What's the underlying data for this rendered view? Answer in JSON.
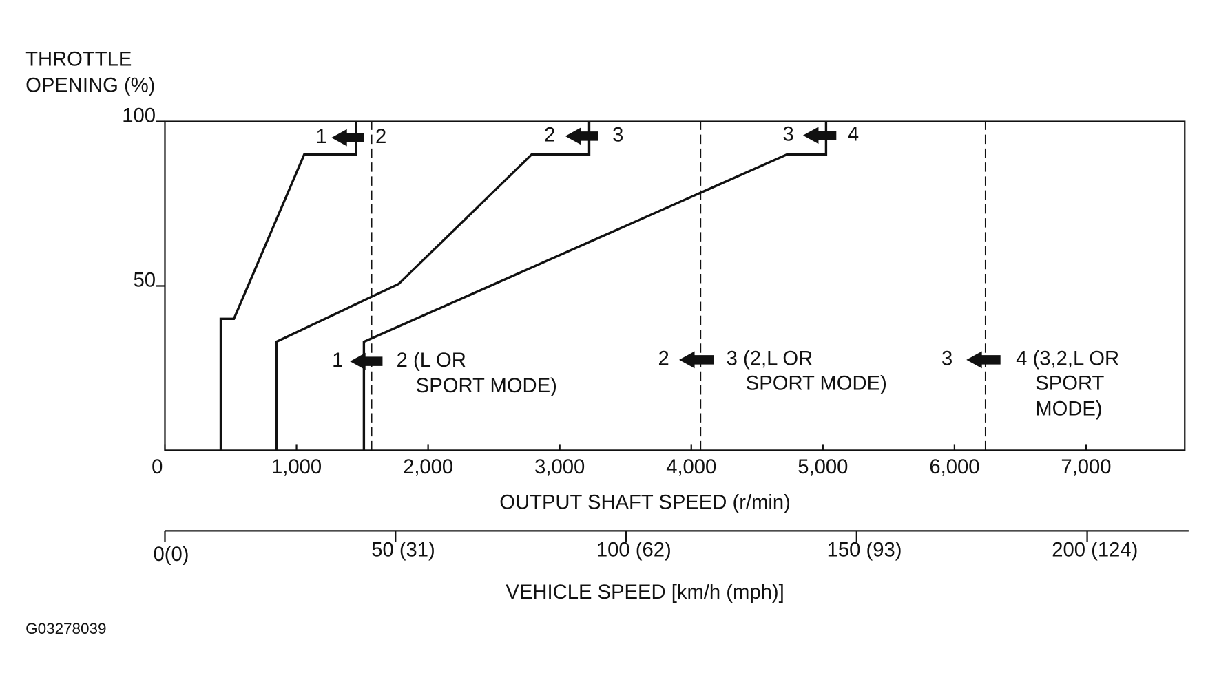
{
  "chart_data": {
    "type": "line",
    "y_label_lines": [
      "THROTTLE",
      "OPENING (%)"
    ],
    "x_label": "OUTPUT SHAFT SPEED (r/min)",
    "x2_label": "VEHICLE SPEED [km/h (mph)]",
    "figure_id": "G03278039",
    "xlim": [
      0,
      7750
    ],
    "ylim": [
      0,
      100
    ],
    "x2lim": [
      0,
      222
    ],
    "xticks": [
      0,
      {
        "value": 1000,
        "label": "1,000"
      },
      {
        "value": 2000,
        "label": "2,000"
      },
      {
        "value": 3000,
        "label": "3,000"
      },
      {
        "value": 4000,
        "label": "4,000"
      },
      {
        "value": 5000,
        "label": "5,000"
      },
      {
        "value": 6000,
        "label": "6,000"
      },
      {
        "value": 7000,
        "label": "7,000"
      }
    ],
    "yticks": [
      50,
      100
    ],
    "x2ticks": [
      {
        "value": 0,
        "label": "0(0)"
      },
      {
        "value": 50,
        "label": "50 (31)"
      },
      {
        "value": 100,
        "label": "100 (62)"
      },
      {
        "value": 150,
        "label": "150 (93)"
      },
      {
        "value": 200,
        "label": "200 (124)"
      }
    ],
    "series": [
      {
        "color": "#111111",
        "style": "solid",
        "x": [
          424,
          424,
          524,
          1059,
          1453,
          1453
        ],
        "values": [
          0,
          40,
          40,
          90,
          90,
          100
        ]
      },
      {
        "color": "#111111",
        "style": "solid",
        "x": [
          847,
          847,
          1776,
          2788,
          3224,
          3224
        ],
        "values": [
          0,
          33,
          50.6,
          90,
          90,
          100
        ]
      },
      {
        "color": "#111111",
        "style": "solid",
        "x": [
          1512,
          1512,
          4729,
          5024,
          5024
        ],
        "values": [
          0,
          33,
          90,
          90,
          100
        ]
      },
      {
        "color": "#111111",
        "style": "dashed",
        "x": [
          1571,
          1571
        ],
        "values": [
          0,
          100
        ]
      },
      {
        "color": "#111111",
        "style": "dashed",
        "x": [
          4071,
          4071
        ],
        "values": [
          0,
          100
        ]
      },
      {
        "color": "#111111",
        "style": "dashed",
        "x": [
          6235,
          6235
        ],
        "values": [
          0,
          100
        ]
      }
    ],
    "annotations": [
      "1",
      "2",
      "2",
      "3",
      "3",
      "4",
      "1",
      "2 (L OR",
      "SPORT MODE)",
      "2",
      "3 (2,L OR",
      "SPORT MODE)",
      "3",
      "4 (3,2,L OR",
      "SPORT",
      "MODE)"
    ]
  }
}
